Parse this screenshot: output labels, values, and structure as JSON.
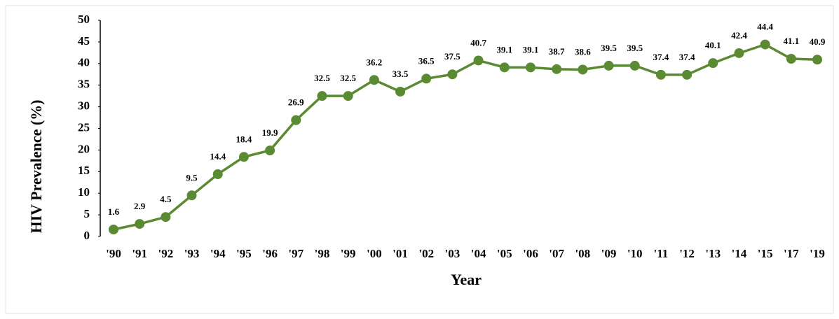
{
  "chart_data": {
    "type": "line",
    "x_label": "Year",
    "y_label": "HIV Prevalence (%)",
    "categories": [
      "'90",
      "'91",
      "'92",
      "'93",
      "'94",
      "'95",
      "'96",
      "'97",
      "'98",
      "'99",
      "'00",
      "'01",
      "'02",
      "'03",
      "'04",
      "'05",
      "'06",
      "'07",
      "'08",
      "'09",
      "'10",
      "'11",
      "'12",
      "'13",
      "'14",
      "'15",
      "'17",
      "'19"
    ],
    "values": [
      1.6,
      2.9,
      4.5,
      9.5,
      14.4,
      18.4,
      19.9,
      26.9,
      32.5,
      32.5,
      36.2,
      33.5,
      36.5,
      37.5,
      40.7,
      39.1,
      39.1,
      38.7,
      38.6,
      39.5,
      39.5,
      37.4,
      37.4,
      40.1,
      42.4,
      44.4,
      41.1,
      40.9
    ],
    "color": "#5a8a32",
    "ylim": [
      0,
      50
    ],
    "yticks": [
      0,
      5,
      10,
      15,
      20,
      25,
      30,
      35,
      40,
      45,
      50
    ],
    "grid": false
  }
}
